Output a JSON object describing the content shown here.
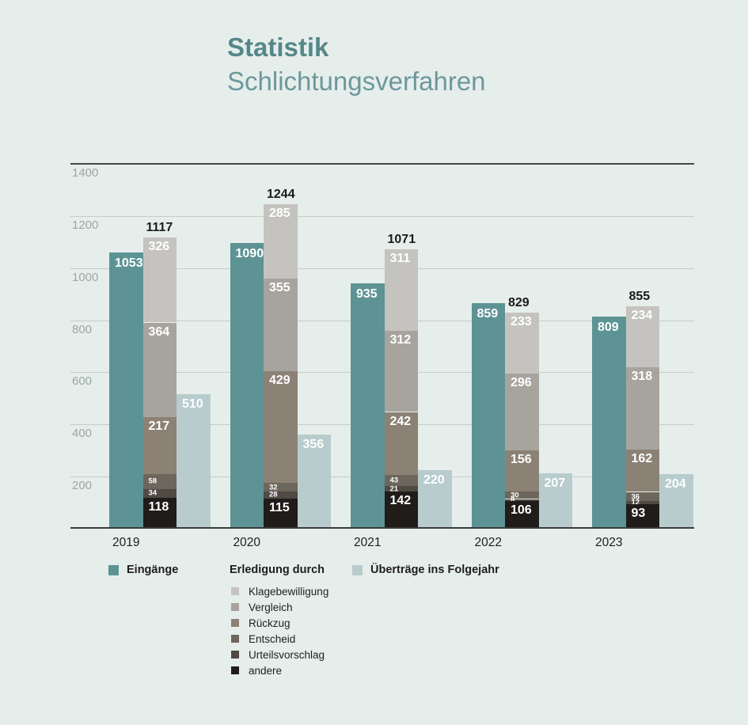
{
  "title": {
    "line1": "Statistik",
    "line2": "Schlichtungsverfahren"
  },
  "colors": {
    "background": "#e6eeec",
    "title_bold": "#558789",
    "title_light": "#6d989b",
    "axis_dark": "#454745",
    "gridline": "#c3cdca",
    "tick_label": "#9ca7a4",
    "text_dark": "#1e1e1c",
    "eingaenge": "#5d9394",
    "uebertraege": "#b8cccd"
  },
  "chart_data": {
    "type": "bar",
    "title": "Statistik Schlichtungsverfahren",
    "categories": [
      "2019",
      "2020",
      "2021",
      "2022",
      "2023"
    ],
    "ylim": [
      0,
      1400
    ],
    "yticks": [
      200,
      400,
      600,
      800,
      1000,
      1200,
      1400
    ],
    "grid": "horizontal",
    "legend_position": "bottom",
    "series": [
      {
        "name": "Eingänge",
        "type": "bar",
        "color": "#5d9394",
        "values": [
          1053,
          1090,
          935,
          859,
          809
        ]
      },
      {
        "name": "Erledigung durch",
        "type": "stacked-bar",
        "totals": [
          1117,
          1244,
          1071,
          829,
          855
        ],
        "segments": [
          {
            "name": "Klagebewilligung",
            "color": "#c5c3bf",
            "values": [
              326,
              285,
              311,
              233,
              234
            ]
          },
          {
            "name": "Vergleich",
            "color": "#a7a49e",
            "values": [
              364,
              355,
              312,
              296,
              318
            ]
          },
          {
            "name": "Rückzug",
            "color": "#8b8275",
            "values": [
              217,
              429,
              242,
              156,
              162
            ]
          },
          {
            "name": "Entscheid",
            "color": "#6d665c",
            "values": [
              58,
              32,
              43,
              30,
              36
            ]
          },
          {
            "name": "Urteilsvorschlag",
            "color": "#4f4a43",
            "values": [
              34,
              28,
              21,
              8,
              12
            ]
          },
          {
            "name": "andere",
            "color": "#1f1c19",
            "values": [
              118,
              115,
              142,
              106,
              93
            ]
          }
        ]
      },
      {
        "name": "Überträge ins Folgejahr",
        "type": "bar",
        "color": "#b8cccd",
        "values": [
          510,
          356,
          220,
          207,
          204
        ]
      }
    ]
  }
}
